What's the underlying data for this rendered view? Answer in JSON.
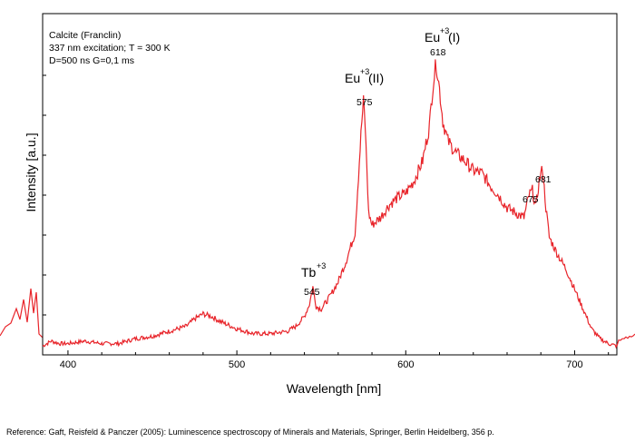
{
  "chart_data": {
    "type": "line",
    "title": "",
    "xlabel": "Wavelength [nm]",
    "ylabel": "Intensity [a.u.]",
    "xlim": [
      385,
      725
    ],
    "x_ticks": [
      400,
      500,
      600,
      700
    ],
    "y_ticks_labeled": false,
    "grid": false,
    "line_color": "#e8242a",
    "info_lines": [
      "Calcite (Franclin)",
      "337 nm excitation; T = 300 K",
      "D=500 ns G=0,1 ms"
    ],
    "series": [
      {
        "x": [
          385,
          390,
          395,
          400,
          410,
          420,
          430,
          440,
          450,
          460,
          470,
          475,
          480,
          485,
          490,
          500,
          510,
          520,
          530,
          535,
          540,
          543,
          545,
          547,
          550,
          555,
          560,
          565,
          570,
          572,
          574,
          575,
          576,
          578,
          580,
          585,
          590,
          595,
          600,
          605,
          610,
          614,
          616,
          618,
          620,
          622,
          625,
          630,
          635,
          640,
          645,
          650,
          655,
          660,
          665,
          670,
          673,
          675,
          677,
          679,
          681,
          683,
          685,
          690,
          695,
          700,
          705,
          710,
          715,
          720,
          725
        ],
        "y": [
          1,
          3,
          2,
          2,
          3,
          2,
          2,
          4,
          5,
          7,
          9,
          12,
          14,
          13,
          11,
          8,
          6,
          6,
          7,
          9,
          13,
          18,
          25,
          17,
          16,
          21,
          27,
          36,
          47,
          70,
          92,
          100,
          90,
          55,
          50,
          53,
          58,
          61,
          63,
          68,
          76,
          90,
          106,
          116,
          105,
          92,
          84,
          79,
          76,
          72,
          71,
          66,
          62,
          57,
          55,
          53,
          62,
          64,
          57,
          68,
          73,
          57,
          45,
          38,
          32,
          24,
          16,
          8,
          4,
          2,
          1
        ]
      }
    ],
    "annotations": [
      {
        "species": "Tb",
        "charge": "+3",
        "suffix": "",
        "peak": "545",
        "x": 545
      },
      {
        "species": "Eu",
        "charge": "+3",
        "suffix": "(II)",
        "peak": "575",
        "x": 575
      },
      {
        "species": "Eu",
        "charge": "+3",
        "suffix": "(I)",
        "peak": "618",
        "x": 618
      },
      {
        "species": "",
        "charge": "",
        "suffix": "",
        "peak": "675",
        "x": 675
      },
      {
        "species": "",
        "charge": "",
        "suffix": "",
        "peak": "681",
        "x": 681
      }
    ]
  },
  "reference": "Reference: Gaft, Reisfeld & Panczer (2005): Luminescence spectroscopy of Minerals and Materials, Springer, Berlin Heidelberg, 356 p."
}
